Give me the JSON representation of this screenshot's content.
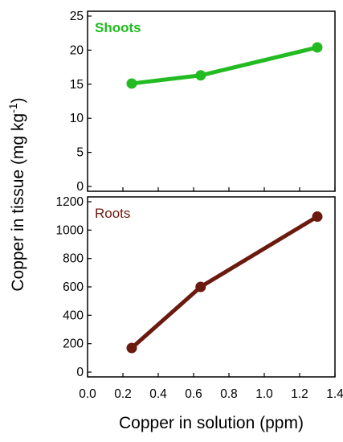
{
  "chart_data": [
    {
      "type": "line",
      "panel_label": "Shoots",
      "color": "#22bb22",
      "x": [
        0.25,
        0.64,
        1.3
      ],
      "y": [
        15.1,
        16.3,
        20.4
      ],
      "xlim": [
        0.0,
        1.4
      ],
      "ylim": [
        0,
        25
      ],
      "yticks": [
        "0",
        "5",
        "10",
        "15",
        "20",
        "25"
      ],
      "ytick_values": [
        0,
        5,
        10,
        15,
        20,
        25
      ],
      "grid": false
    },
    {
      "type": "line",
      "panel_label": "Roots",
      "color": "#6b1a0e",
      "x": [
        0.25,
        0.64,
        1.3
      ],
      "y": [
        170,
        600,
        1095
      ],
      "xlim": [
        0.0,
        1.4
      ],
      "ylim": [
        0,
        1200
      ],
      "yticks": [
        "0",
        "200",
        "400",
        "600",
        "800",
        "1000",
        "1200"
      ],
      "ytick_values": [
        0,
        200,
        400,
        600,
        800,
        1000,
        1200
      ],
      "xticks": [
        "0.0",
        "0.2",
        "0.4",
        "0.6",
        "0.8",
        "1.0",
        "1.2",
        "1.4"
      ],
      "xtick_values": [
        0.0,
        0.2,
        0.4,
        0.6,
        0.8,
        1.0,
        1.2,
        1.4
      ],
      "grid": false
    }
  ],
  "labels": {
    "xlabel": "Copper in solution (ppm)",
    "ylabel_main": "Copper in tissue (mg kg",
    "ylabel_sup": "-1",
    "ylabel_close": ")"
  }
}
